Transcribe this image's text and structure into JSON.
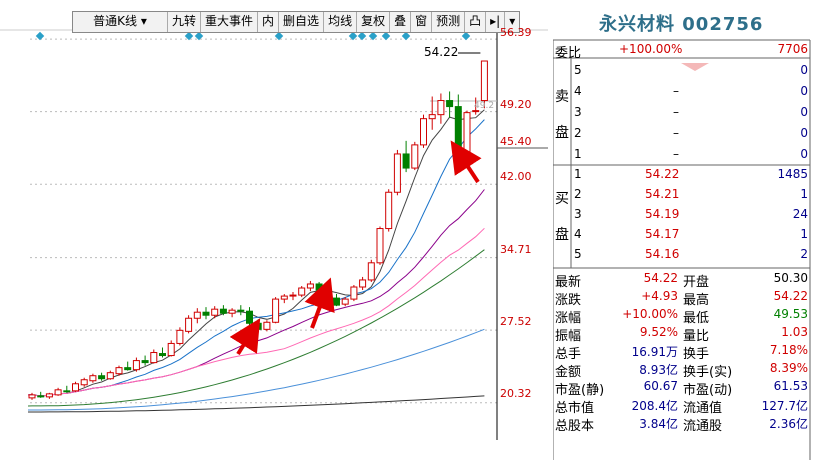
{
  "toolbar": {
    "kline_type": "普通K线",
    "items": [
      "九转",
      "重大事件",
      "内",
      "删自选",
      "均线",
      "复权",
      "叠",
      "窗",
      "预测",
      "凸"
    ]
  },
  "chart": {
    "price_labels": [
      "56.39",
      "49.20",
      "45.40",
      "42.00",
      "34.71",
      "27.52",
      "20.32"
    ],
    "high_annotation": "54.22",
    "partial_label": "49.2"
  },
  "stock": {
    "name_code": "永兴材料 002756"
  },
  "weibi": {
    "label": "委比",
    "value": "+100.00%",
    "volume": "7706"
  },
  "sell_side": {
    "label": "卖盘",
    "rows": [
      {
        "level": "5",
        "price": "",
        "vol": "0"
      },
      {
        "level": "4",
        "price": "–",
        "vol": "0"
      },
      {
        "level": "3",
        "price": "–",
        "vol": "0"
      },
      {
        "level": "2",
        "price": "–",
        "vol": "0"
      },
      {
        "level": "1",
        "price": "–",
        "vol": "0"
      }
    ]
  },
  "buy_side": {
    "label": "买盘",
    "rows": [
      {
        "level": "1",
        "price": "54.22",
        "vol": "1485"
      },
      {
        "level": "2",
        "price": "54.21",
        "vol": "1"
      },
      {
        "level": "3",
        "price": "54.19",
        "vol": "24"
      },
      {
        "level": "4",
        "price": "54.17",
        "vol": "1"
      },
      {
        "level": "5",
        "price": "54.16",
        "vol": "2"
      }
    ]
  },
  "quote": [
    {
      "l1": "最新",
      "v1": "54.22",
      "l2": "开盘",
      "v2": "50.30"
    },
    {
      "l1": "涨跌",
      "v1": "+4.93",
      "l2": "最高",
      "v2": "54.22"
    },
    {
      "l1": "涨幅",
      "v1": "+10.00%",
      "l2": "最低",
      "v2": "49.53"
    },
    {
      "l1": "振幅",
      "v1": "9.52%",
      "l2": "量比",
      "v2": "1.03"
    },
    {
      "l1": "总手",
      "v1": "16.91万",
      "l2": "换手",
      "v2": "7.18%"
    },
    {
      "l1": "金额",
      "v1": "8.93亿",
      "l2": "换手(实)",
      "v2": "8.39%"
    },
    {
      "l1": "市盈(静)",
      "v1": "60.67",
      "l2": "市盈(动)",
      "v2": "61.53"
    },
    {
      "l1": "总市值",
      "v1": "208.4亿",
      "l2": "流通值",
      "v2": "127.7亿"
    },
    {
      "l1": "总股本",
      "v1": "3.84亿",
      "l2": "流通股",
      "v2": "2.36亿"
    }
  ],
  "colors": {
    "up": "#d00000",
    "down": "#008000",
    "title": "#2e6f8a"
  },
  "candles": [
    [
      20.8,
      21.3,
      20.6,
      21.1
    ],
    [
      21.0,
      21.4,
      20.8,
      20.9
    ],
    [
      20.9,
      21.3,
      20.7,
      21.2
    ],
    [
      21.1,
      21.8,
      21.0,
      21.6
    ],
    [
      21.5,
      22.0,
      21.3,
      21.4
    ],
    [
      21.5,
      22.4,
      21.4,
      22.2
    ],
    [
      22.1,
      22.8,
      21.9,
      22.6
    ],
    [
      22.5,
      23.2,
      22.3,
      23.0
    ],
    [
      23.0,
      23.3,
      22.5,
      22.7
    ],
    [
      22.7,
      23.5,
      22.6,
      23.3
    ],
    [
      23.2,
      24.0,
      23.0,
      23.8
    ],
    [
      23.8,
      24.4,
      23.5,
      23.6
    ],
    [
      23.6,
      24.8,
      23.4,
      24.5
    ],
    [
      24.5,
      25.0,
      24.0,
      24.3
    ],
    [
      24.3,
      25.6,
      24.2,
      25.3
    ],
    [
      25.2,
      25.8,
      24.8,
      25.0
    ],
    [
      25.0,
      26.5,
      24.9,
      26.2
    ],
    [
      26.2,
      27.8,
      26.0,
      27.5
    ],
    [
      27.4,
      29.0,
      27.2,
      28.7
    ],
    [
      28.7,
      29.7,
      28.2,
      29.3
    ],
    [
      29.3,
      29.8,
      28.6,
      29.0
    ],
    [
      29.0,
      29.9,
      28.7,
      29.6
    ],
    [
      29.6,
      30.0,
      29.0,
      29.2
    ],
    [
      29.2,
      29.7,
      28.8,
      29.5
    ],
    [
      29.5,
      30.0,
      29.0,
      29.4
    ],
    [
      29.4,
      29.8,
      27.8,
      28.2
    ],
    [
      28.2,
      28.6,
      27.3,
      27.6
    ],
    [
      27.6,
      28.5,
      27.4,
      28.3
    ],
    [
      28.3,
      30.8,
      28.2,
      30.6
    ],
    [
      30.6,
      31.1,
      30.2,
      30.9
    ],
    [
      30.9,
      31.3,
      30.5,
      31.0
    ],
    [
      31.0,
      31.9,
      30.8,
      31.7
    ],
    [
      31.7,
      32.4,
      31.4,
      32.1
    ],
    [
      32.1,
      32.3,
      31.3,
      31.5
    ],
    [
      31.6,
      31.8,
      30.6,
      30.9
    ],
    [
      30.7,
      31.1,
      29.9,
      30.0
    ],
    [
      30.1,
      30.8,
      29.9,
      30.6
    ],
    [
      30.6,
      32.0,
      30.4,
      31.8
    ],
    [
      31.8,
      32.8,
      31.5,
      32.5
    ],
    [
      32.5,
      34.5,
      32.3,
      34.2
    ],
    [
      34.2,
      37.8,
      34.0,
      37.6
    ],
    [
      37.6,
      41.5,
      37.3,
      41.2
    ],
    [
      41.2,
      45.4,
      40.9,
      45.0
    ],
    [
      45.0,
      46.3,
      43.2,
      43.6
    ],
    [
      43.6,
      46.2,
      43.4,
      45.9
    ],
    [
      45.9,
      48.9,
      45.6,
      48.5
    ],
    [
      48.5,
      50.7,
      47.4,
      48.9
    ],
    [
      48.9,
      51.0,
      48.0,
      50.3
    ],
    [
      50.3,
      51.2,
      48.6,
      49.7
    ],
    [
      49.7,
      50.9,
      44.1,
      44.6
    ],
    [
      44.6,
      49.3,
      44.4,
      49.1
    ],
    [
      49.3,
      50.6,
      48.9,
      49.3
    ],
    [
      50.3,
      54.22,
      49.53,
      54.22
    ]
  ]
}
